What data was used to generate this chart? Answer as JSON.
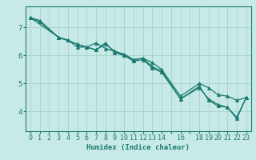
{
  "xlabel": "Humidex (Indice chaleur)",
  "background_color": "#c8eae6",
  "grid_color": "#aad4d0",
  "line_color": "#1a7a70",
  "xlim": [
    -0.5,
    23.5
  ],
  "ylim": [
    3.3,
    7.75
  ],
  "yticks": [
    4,
    5,
    6,
    7
  ],
  "line1_x": [
    0,
    1,
    3,
    5,
    6,
    7,
    8,
    9,
    10,
    11,
    12,
    13,
    14,
    16,
    18,
    19,
    20,
    21,
    22,
    23
  ],
  "line1_y": [
    7.35,
    7.25,
    6.65,
    6.4,
    6.3,
    6.2,
    6.4,
    6.15,
    6.05,
    5.85,
    5.9,
    5.6,
    5.45,
    4.45,
    4.9,
    4.4,
    4.2,
    4.15,
    3.75,
    4.5
  ],
  "line2_x": [
    0,
    1,
    3,
    4,
    5,
    6,
    7,
    8,
    9,
    10,
    11,
    12,
    13,
    14,
    16,
    18,
    19,
    20,
    21,
    22,
    23
  ],
  "line2_y": [
    7.35,
    7.2,
    6.65,
    6.55,
    6.4,
    6.3,
    6.45,
    6.25,
    6.15,
    6.0,
    5.85,
    5.9,
    5.75,
    5.5,
    4.55,
    5.0,
    4.85,
    4.6,
    4.55,
    4.4,
    4.5
  ],
  "line3_x": [
    0,
    3,
    4,
    5,
    6,
    7,
    8,
    9,
    10,
    11,
    12,
    13,
    14,
    16,
    18,
    19,
    20,
    21,
    22,
    23
  ],
  "line3_y": [
    7.35,
    6.65,
    6.55,
    6.3,
    6.3,
    6.2,
    6.45,
    6.1,
    6.0,
    5.8,
    5.85,
    5.55,
    5.4,
    4.45,
    4.85,
    4.45,
    4.25,
    4.15,
    3.8,
    4.5
  ],
  "marker": "^",
  "markersize": 3.0,
  "linewidth": 0.9
}
